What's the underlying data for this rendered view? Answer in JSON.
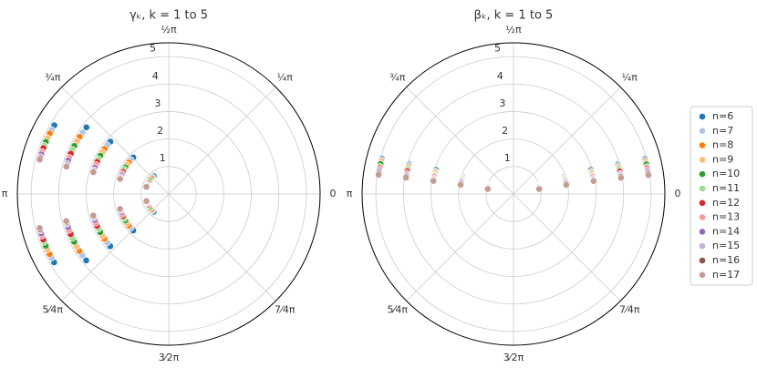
{
  "chart_data": [
    {
      "type": "polar_scatter",
      "title": "γₖ, k = 1 to 5",
      "rlim": [
        0,
        5.5
      ],
      "rticks": [
        1,
        2,
        3,
        4,
        5
      ],
      "thetaticks": [
        0,
        {
          "value": 0.7854,
          "label": "¼π"
        },
        {
          "value": 1.5708,
          "label": "½π"
        },
        {
          "value": 2.3562,
          "label": "¾π"
        },
        {
          "value": 3.1416,
          "label": "π"
        },
        {
          "value": 3.927,
          "label": "5⁄4π"
        },
        {
          "value": 4.7124,
          "label": "3⁄2π"
        },
        {
          "value": 5.4978,
          "label": "7⁄4π"
        }
      ],
      "grid": true,
      "series": [
        {
          "name": "n=6",
          "color": "#1f77b4",
          "theta": [
            2.27,
            2.34,
            2.41,
            2.46,
            2.6,
            4.01,
            3.94,
            3.87,
            3.82,
            3.68
          ],
          "r": [
            0.85,
            1.85,
            2.85,
            3.85,
            4.85,
            0.85,
            1.85,
            2.85,
            3.85,
            4.85
          ]
        },
        {
          "name": "n=7",
          "color": "#aec7e8",
          "theta": [
            2.34,
            2.41,
            2.47,
            2.52,
            2.64,
            3.94,
            3.87,
            3.81,
            3.76,
            3.64
          ],
          "r": [
            0.85,
            1.85,
            2.85,
            3.85,
            4.85,
            0.85,
            1.85,
            2.85,
            3.85,
            4.85
          ]
        },
        {
          "name": "n=8",
          "color": "#ff7f0e",
          "theta": [
            2.41,
            2.47,
            2.53,
            2.57,
            2.67,
            3.87,
            3.81,
            3.75,
            3.71,
            3.61
          ],
          "r": [
            0.85,
            1.85,
            2.85,
            3.85,
            4.85,
            0.85,
            1.85,
            2.85,
            3.85,
            4.85
          ]
        },
        {
          "name": "n=9",
          "color": "#ffbb78",
          "theta": [
            2.48,
            2.53,
            2.58,
            2.62,
            2.71,
            3.8,
            3.75,
            3.7,
            3.66,
            3.57
          ],
          "r": [
            0.85,
            1.85,
            2.85,
            3.85,
            4.85,
            0.85,
            1.85,
            2.85,
            3.85,
            4.85
          ]
        },
        {
          "name": "n=10",
          "color": "#2ca02c",
          "theta": [
            2.54,
            2.59,
            2.63,
            2.67,
            2.74,
            3.74,
            3.69,
            3.65,
            3.61,
            3.54
          ],
          "r": [
            0.85,
            1.85,
            2.85,
            3.85,
            4.85,
            0.85,
            1.85,
            2.85,
            3.85,
            4.85
          ]
        },
        {
          "name": "n=11",
          "color": "#98df8a",
          "theta": [
            2.6,
            2.64,
            2.68,
            2.71,
            2.77,
            3.68,
            3.64,
            3.6,
            3.57,
            3.51
          ],
          "r": [
            0.85,
            1.85,
            2.85,
            3.85,
            4.85,
            0.85,
            1.85,
            2.85,
            3.85,
            4.85
          ]
        },
        {
          "name": "n=12",
          "color": "#d62728",
          "theta": [
            2.66,
            2.69,
            2.72,
            2.75,
            2.79,
            3.62,
            3.59,
            3.56,
            3.53,
            3.49
          ],
          "r": [
            0.85,
            1.85,
            2.85,
            3.85,
            4.85,
            0.85,
            1.85,
            2.85,
            3.85,
            4.85
          ]
        },
        {
          "name": "n=13",
          "color": "#ff9896",
          "theta": [
            2.71,
            2.73,
            2.76,
            2.79,
            2.82,
            3.57,
            3.55,
            3.52,
            3.49,
            3.46
          ],
          "r": [
            0.85,
            1.85,
            2.85,
            3.85,
            4.85,
            0.85,
            1.85,
            2.85,
            3.85,
            4.85
          ]
        },
        {
          "name": "n=14",
          "color": "#9467bd",
          "theta": [
            2.75,
            2.77,
            2.8,
            2.82,
            2.84,
            3.53,
            3.51,
            3.48,
            3.46,
            3.44
          ],
          "r": [
            0.85,
            1.85,
            2.85,
            3.85,
            4.85,
            0.85,
            1.85,
            2.85,
            3.85,
            4.85
          ]
        },
        {
          "name": "n=15",
          "color": "#c5b0d5",
          "theta": [
            2.78,
            2.8,
            2.83,
            2.85,
            2.86,
            3.5,
            3.48,
            3.45,
            3.43,
            3.42
          ],
          "r": [
            0.85,
            1.85,
            2.85,
            3.85,
            4.85,
            0.85,
            1.85,
            2.85,
            3.85,
            4.85
          ]
        },
        {
          "name": "n=16",
          "color": "#8c564b",
          "theta": [
            2.81,
            2.83,
            2.85,
            2.87,
            2.87,
            3.47,
            3.45,
            3.43,
            3.41,
            3.41
          ],
          "r": [
            0.85,
            1.85,
            2.85,
            3.85,
            4.85,
            0.85,
            1.85,
            2.85,
            3.85,
            4.85
          ]
        },
        {
          "name": "n=17",
          "color": "#c49c94",
          "theta": [
            2.83,
            2.84,
            2.86,
            2.88,
            2.88,
            3.45,
            3.44,
            3.42,
            3.4,
            3.4
          ],
          "r": [
            0.85,
            1.85,
            2.85,
            3.85,
            4.85,
            0.85,
            1.85,
            2.85,
            3.85,
            4.85
          ]
        }
      ]
    },
    {
      "type": "polar_scatter",
      "title": "βₖ, k = 1 to 5",
      "rlim": [
        0,
        5.5
      ],
      "rticks": [
        1,
        2,
        3,
        4,
        5
      ],
      "thetaticks": [
        0,
        {
          "value": 0.7854,
          "label": "¼π"
        },
        {
          "value": 1.5708,
          "label": "½π"
        },
        {
          "value": 2.3562,
          "label": "¾π"
        },
        {
          "value": 3.1416,
          "label": "π"
        },
        {
          "value": 3.927,
          "label": "5⁄4π"
        },
        {
          "value": 4.7124,
          "label": "3⁄2π"
        },
        {
          "value": 5.4978,
          "label": "7⁄4π"
        }
      ],
      "grid": true,
      "series": [
        {
          "color": "#1f77b4",
          "theta": [
            2.78,
            2.81,
            2.84,
            2.86,
            2.88,
            0.36,
            0.33,
            0.3,
            0.28,
            0.26
          ],
          "r": [
            0.95,
            1.95,
            2.95,
            3.95,
            4.95,
            0.95,
            1.95,
            2.95,
            3.95,
            4.95
          ]
        },
        {
          "color": "#aec7e8",
          "theta": [
            2.79,
            2.82,
            2.86,
            2.87,
            2.89,
            0.35,
            0.32,
            0.28,
            0.27,
            0.25
          ],
          "r": [
            0.95,
            1.95,
            2.95,
            3.95,
            4.95,
            0.95,
            1.95,
            2.95,
            3.95,
            4.95
          ]
        },
        {
          "color": "#ff7f0e",
          "theta": [
            2.81,
            2.84,
            2.87,
            2.89,
            2.9,
            0.33,
            0.3,
            0.27,
            0.25,
            0.24
          ],
          "r": [
            0.95,
            1.95,
            2.95,
            3.95,
            4.95,
            0.95,
            1.95,
            2.95,
            3.95,
            4.95
          ]
        },
        {
          "color": "#ffbb78",
          "theta": [
            2.82,
            2.85,
            2.88,
            2.9,
            2.91,
            0.32,
            0.29,
            0.26,
            0.24,
            0.23
          ],
          "r": [
            0.95,
            1.95,
            2.95,
            3.95,
            4.95,
            0.95,
            1.95,
            2.95,
            3.95,
            4.95
          ]
        },
        {
          "color": "#2ca02c",
          "theta": [
            2.84,
            2.87,
            2.9,
            2.91,
            2.92,
            0.3,
            0.27,
            0.24,
            0.23,
            0.22
          ],
          "r": [
            0.95,
            1.95,
            2.95,
            3.95,
            4.95,
            0.95,
            1.95,
            2.95,
            3.95,
            4.95
          ]
        },
        {
          "color": "#98df8a",
          "theta": [
            2.85,
            2.88,
            2.91,
            2.92,
            2.94,
            0.29,
            0.26,
            0.23,
            0.22,
            0.2
          ],
          "r": [
            0.95,
            1.95,
            2.95,
            3.95,
            4.95,
            0.95,
            1.95,
            2.95,
            3.95,
            4.95
          ]
        },
        {
          "color": "#d62728",
          "theta": [
            2.87,
            2.9,
            2.92,
            2.93,
            2.95,
            0.27,
            0.24,
            0.22,
            0.21,
            0.19
          ],
          "r": [
            0.95,
            1.95,
            2.95,
            3.95,
            4.95,
            0.95,
            1.95,
            2.95,
            3.95,
            4.95
          ]
        },
        {
          "color": "#ff9896",
          "theta": [
            2.89,
            2.91,
            2.93,
            2.95,
            2.96,
            0.25,
            0.23,
            0.21,
            0.19,
            0.18
          ],
          "r": [
            0.95,
            1.95,
            2.95,
            3.95,
            4.95,
            0.95,
            1.95,
            2.95,
            3.95,
            4.95
          ]
        },
        {
          "color": "#9467bd",
          "theta": [
            2.9,
            2.92,
            2.95,
            2.96,
            2.97,
            0.24,
            0.22,
            0.19,
            0.18,
            0.17
          ],
          "r": [
            0.95,
            1.95,
            2.95,
            3.95,
            4.95,
            0.95,
            1.95,
            2.95,
            3.95,
            4.95
          ]
        },
        {
          "color": "#c5b0d5",
          "theta": [
            2.92,
            2.94,
            2.96,
            2.97,
            2.98,
            0.22,
            0.2,
            0.18,
            0.17,
            0.16
          ],
          "r": [
            0.95,
            1.95,
            2.95,
            3.95,
            4.95,
            0.95,
            1.95,
            2.95,
            3.95,
            4.95
          ]
        },
        {
          "color": "#8c564b",
          "theta": [
            2.93,
            2.95,
            2.97,
            2.98,
            2.99,
            0.21,
            0.19,
            0.17,
            0.16,
            0.15
          ],
          "r": [
            0.95,
            1.95,
            2.95,
            3.95,
            4.95,
            0.95,
            1.95,
            2.95,
            3.95,
            4.95
          ]
        },
        {
          "color": "#c49c94",
          "theta": [
            2.95,
            2.97,
            2.98,
            2.99,
            3.0,
            0.19,
            0.17,
            0.16,
            0.15,
            0.14
          ],
          "r": [
            0.95,
            1.95,
            2.95,
            3.95,
            4.95,
            0.95,
            1.95,
            2.95,
            3.95,
            4.95
          ]
        }
      ]
    }
  ]
}
